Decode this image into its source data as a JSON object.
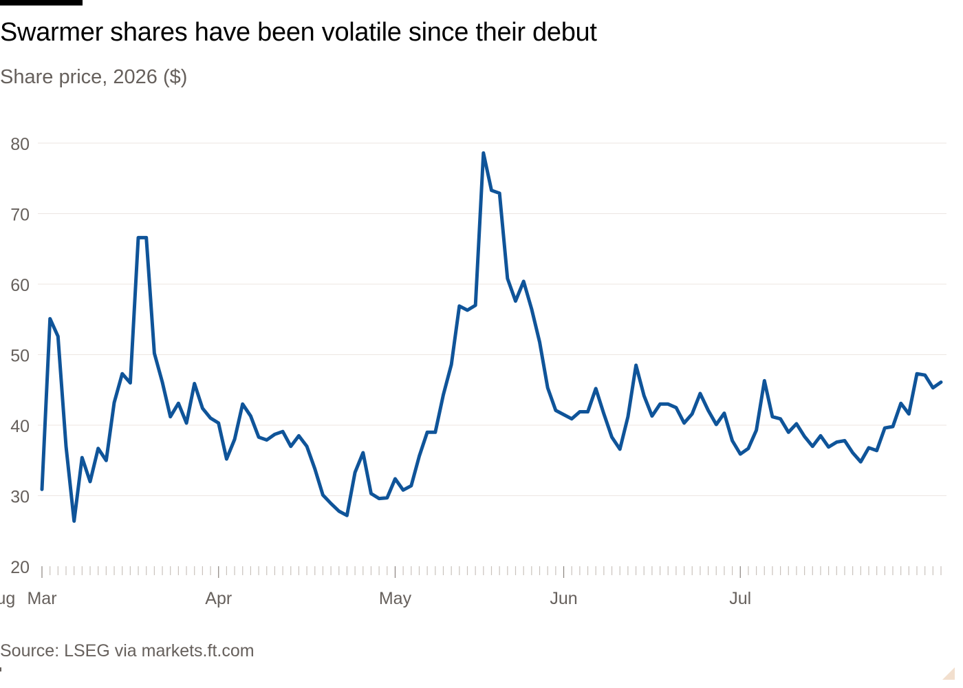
{
  "header": {
    "title": "Swarmer shares have been volatile since their debut",
    "subtitle": "Share price, 2026 ($)"
  },
  "footer": {
    "source": "Source: LSEG via markets.ft.com"
  },
  "colors": {
    "line": "#0f5499",
    "grid": "#ece6e2",
    "axis_text": "#66605c",
    "tick": "#c9c2bc"
  },
  "chart_data": {
    "type": "line",
    "title": "Swarmer shares have been volatile since their debut",
    "subtitle": "Share price, 2026 ($)",
    "xlabel": "",
    "ylabel": "",
    "ylim": [
      20,
      80
    ],
    "yticks": [
      20,
      30,
      40,
      50,
      60,
      70,
      80
    ],
    "grid": true,
    "legend": "none",
    "x_ticks": [
      {
        "label": "Mar",
        "date": "2026-03-02"
      },
      {
        "label": "Apr",
        "date": "2026-04-01"
      },
      {
        "label": "May",
        "date": "2026-05-01"
      },
      {
        "label": "Jun",
        "date": "2026-06-01"
      },
      {
        "label": "Jul",
        "date": "2026-07-01"
      },
      {
        "label": "Aug",
        "date": "2026-08-01"
      }
    ],
    "series": [
      {
        "name": "",
        "points": [
          [
            "2026-03-02",
            30.9
          ],
          [
            "2026-03-03",
            55.1
          ],
          [
            "2026-03-04",
            52.6
          ],
          [
            "2026-03-05",
            37.0
          ],
          [
            "2026-03-06",
            26.4
          ],
          [
            "2026-03-09",
            35.4
          ],
          [
            "2026-03-10",
            32.0
          ],
          [
            "2026-03-11",
            36.7
          ],
          [
            "2026-03-12",
            35.0
          ],
          [
            "2026-03-13",
            43.2
          ],
          [
            "2026-03-16",
            47.3
          ],
          [
            "2026-03-17",
            46.0
          ],
          [
            "2026-03-18",
            66.6
          ],
          [
            "2026-03-19",
            66.6
          ],
          [
            "2026-03-20",
            50.2
          ],
          [
            "2026-03-23",
            46.1
          ],
          [
            "2026-03-24",
            41.2
          ],
          [
            "2026-03-25",
            43.1
          ],
          [
            "2026-03-26",
            40.3
          ],
          [
            "2026-03-27",
            45.9
          ],
          [
            "2026-03-30",
            42.4
          ],
          [
            "2026-03-31",
            41.0
          ],
          [
            "2026-04-01",
            40.3
          ],
          [
            "2026-04-02",
            35.2
          ],
          [
            "2026-04-03",
            38.0
          ],
          [
            "2026-04-06",
            43.0
          ],
          [
            "2026-04-07",
            41.3
          ],
          [
            "2026-04-08",
            38.3
          ],
          [
            "2026-04-09",
            37.9
          ],
          [
            "2026-04-10",
            38.7
          ],
          [
            "2026-04-13",
            39.1
          ],
          [
            "2026-04-14",
            37.0
          ],
          [
            "2026-04-15",
            38.5
          ],
          [
            "2026-04-16",
            37.0
          ],
          [
            "2026-04-17",
            33.8
          ],
          [
            "2026-04-20",
            30.1
          ],
          [
            "2026-04-21",
            28.9
          ],
          [
            "2026-04-22",
            27.8
          ],
          [
            "2026-04-23",
            27.2
          ],
          [
            "2026-04-24",
            33.3
          ],
          [
            "2026-04-27",
            36.1
          ],
          [
            "2026-04-28",
            30.3
          ],
          [
            "2026-04-29",
            29.6
          ],
          [
            "2026-04-30",
            29.7
          ],
          [
            "2026-05-01",
            32.4
          ],
          [
            "2026-05-04",
            30.8
          ],
          [
            "2026-05-05",
            31.4
          ],
          [
            "2026-05-06",
            35.6
          ],
          [
            "2026-05-07",
            39.0
          ],
          [
            "2026-05-08",
            39.0
          ],
          [
            "2026-05-11",
            44.3
          ],
          [
            "2026-05-12",
            48.6
          ],
          [
            "2026-05-13",
            56.9
          ],
          [
            "2026-05-14",
            56.3
          ],
          [
            "2026-05-15",
            57.0
          ],
          [
            "2026-05-18",
            78.6
          ],
          [
            "2026-05-19",
            73.3
          ],
          [
            "2026-05-20",
            72.9
          ],
          [
            "2026-05-21",
            60.8
          ],
          [
            "2026-05-22",
            57.6
          ],
          [
            "2026-05-25",
            60.4
          ],
          [
            "2026-05-26",
            56.5
          ],
          [
            "2026-05-27",
            51.8
          ],
          [
            "2026-05-28",
            45.3
          ],
          [
            "2026-05-29",
            42.1
          ],
          [
            "2026-06-01",
            41.5
          ],
          [
            "2026-06-02",
            40.9
          ],
          [
            "2026-06-03",
            41.9
          ],
          [
            "2026-06-04",
            41.9
          ],
          [
            "2026-06-05",
            45.2
          ],
          [
            "2026-06-08",
            41.6
          ],
          [
            "2026-06-09",
            38.3
          ],
          [
            "2026-06-10",
            36.6
          ],
          [
            "2026-06-11",
            41.2
          ],
          [
            "2026-06-12",
            48.5
          ],
          [
            "2026-06-15",
            44.2
          ],
          [
            "2026-06-16",
            41.3
          ],
          [
            "2026-06-17",
            43.0
          ],
          [
            "2026-06-18",
            43.0
          ],
          [
            "2026-06-19",
            42.5
          ],
          [
            "2026-06-22",
            40.3
          ],
          [
            "2026-06-23",
            41.6
          ],
          [
            "2026-06-24",
            44.5
          ],
          [
            "2026-06-25",
            42.1
          ],
          [
            "2026-06-26",
            40.1
          ],
          [
            "2026-06-29",
            41.7
          ],
          [
            "2026-06-30",
            37.8
          ],
          [
            "2026-07-01",
            35.9
          ],
          [
            "2026-07-02",
            36.7
          ],
          [
            "2026-07-03",
            39.3
          ],
          [
            "2026-07-06",
            46.3
          ],
          [
            "2026-07-07",
            41.2
          ],
          [
            "2026-07-08",
            40.9
          ],
          [
            "2026-07-09",
            39.0
          ],
          [
            "2026-07-10",
            40.2
          ],
          [
            "2026-07-13",
            38.4
          ],
          [
            "2026-07-14",
            37.0
          ],
          [
            "2026-07-15",
            38.5
          ],
          [
            "2026-07-16",
            36.9
          ],
          [
            "2026-07-17",
            37.6
          ],
          [
            "2026-07-20",
            37.8
          ],
          [
            "2026-07-21",
            36.1
          ],
          [
            "2026-07-22",
            34.8
          ],
          [
            "2026-07-23",
            36.8
          ],
          [
            "2026-07-24",
            36.4
          ],
          [
            "2026-07-27",
            39.6
          ],
          [
            "2026-07-28",
            39.8
          ],
          [
            "2026-07-29",
            43.1
          ],
          [
            "2026-07-30",
            41.6
          ],
          [
            "2026-07-31",
            47.3
          ],
          [
            "2026-08-03",
            47.1
          ],
          [
            "2026-08-04",
            45.3
          ],
          [
            "2026-08-05",
            46.1
          ]
        ]
      }
    ]
  }
}
